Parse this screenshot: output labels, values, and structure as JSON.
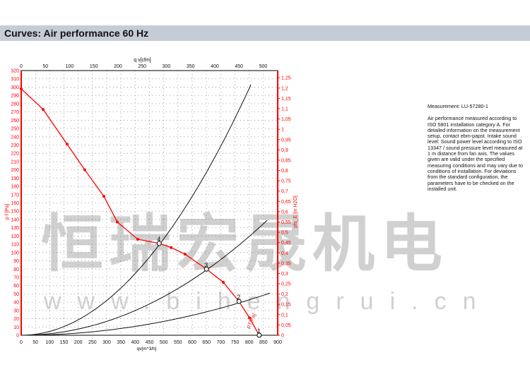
{
  "header": {
    "title": "Curves: Air performance 60 Hz"
  },
  "info": {
    "measurement": "Measurement: LU-57280-1",
    "description": "Air performance measured according to ISO 5801 installation category A. For detailed information on the measurement setup, contact ebm-papst. Intake sound level: Sound power level according to ISO 13347 / sound pressure level measured at 1 m distance from fan axis. The values given are valid under the specified measuring conditions and may vary due to conditions of installation. For deviations from the standard configuration, the parameters have to be checked on the installed unit."
  },
  "watermark": {
    "text": "恒瑞宏晟机电",
    "url": "w w w . b i h e n g r u i . c n"
  },
  "colors": {
    "fan_curve": "#ff0000",
    "system_curve": "#111111",
    "axis_red": "#ff0000",
    "header_bg": "#c5ccd6"
  },
  "chart_data": {
    "type": "line",
    "xlabel": "qv[m^3/h]",
    "x2label": "q v[cfm]",
    "ylabel": "p f [Pa]",
    "y2label": "pfs_E [in H2O]",
    "xlim": [
      0,
      900
    ],
    "ylim": [
      0,
      320
    ],
    "x2lim": [
      0,
      530
    ],
    "y2lim": [
      0,
      1.285
    ],
    "xticks": [
      "0",
      "50",
      "100",
      "150",
      "200",
      "250",
      "300",
      "350",
      "400",
      "450",
      "500",
      "550",
      "600",
      "650",
      "700",
      "750",
      "800",
      "850",
      "900"
    ],
    "yticks": [
      "0",
      "10",
      "20",
      "30",
      "40",
      "50",
      "60",
      "70",
      "80",
      "90",
      "100",
      "110",
      "120",
      "130",
      "140",
      "150",
      "160",
      "170",
      "180",
      "190",
      "200",
      "210",
      "220",
      "230",
      "240",
      "250",
      "260",
      "270",
      "280",
      "290",
      "300",
      "310",
      "320"
    ],
    "x2ticks": [
      "0",
      "50",
      "100",
      "150",
      "200",
      "250",
      "300",
      "350",
      "400",
      "450",
      "500"
    ],
    "y2ticks": [
      "0",
      "0,05",
      "0,1",
      "0,15",
      "0,2",
      "0,25",
      "0,3",
      "0,35",
      "0,4",
      "0,45",
      "0,5",
      "0,55",
      "0,6",
      "0,65",
      "0,7",
      "0,75",
      "0,8",
      "0,85",
      "0,9",
      "0,95",
      "1",
      "1,05",
      "1,1",
      "1,15",
      "1,2",
      "1,25"
    ],
    "grid": true,
    "fan_curve": {
      "label": "p f [Pa]",
      "points": [
        [
          0,
          298
        ],
        [
          77,
          273
        ],
        [
          161,
          231
        ],
        [
          223,
          200
        ],
        [
          290,
          168
        ],
        [
          337,
          137
        ],
        [
          409,
          116
        ],
        [
          484,
          111
        ],
        [
          526,
          106
        ],
        [
          575,
          98
        ],
        [
          650,
          80
        ],
        [
          709,
          64
        ],
        [
          764,
          41
        ],
        [
          801,
          21
        ],
        [
          835,
          0
        ]
      ]
    },
    "system_curves": [
      {
        "end": [
          806,
          303
        ]
      },
      {
        "end": [
          863,
          139
        ]
      },
      {
        "end": [
          873,
          51
        ]
      }
    ],
    "operating_points": [
      {
        "label": "1",
        "q": 835,
        "p": 0
      },
      {
        "label": "2",
        "q": 764,
        "p": 41
      },
      {
        "label": "3",
        "q": 650,
        "p": 80
      },
      {
        "label": "4",
        "q": 484,
        "p": 111
      }
    ]
  }
}
